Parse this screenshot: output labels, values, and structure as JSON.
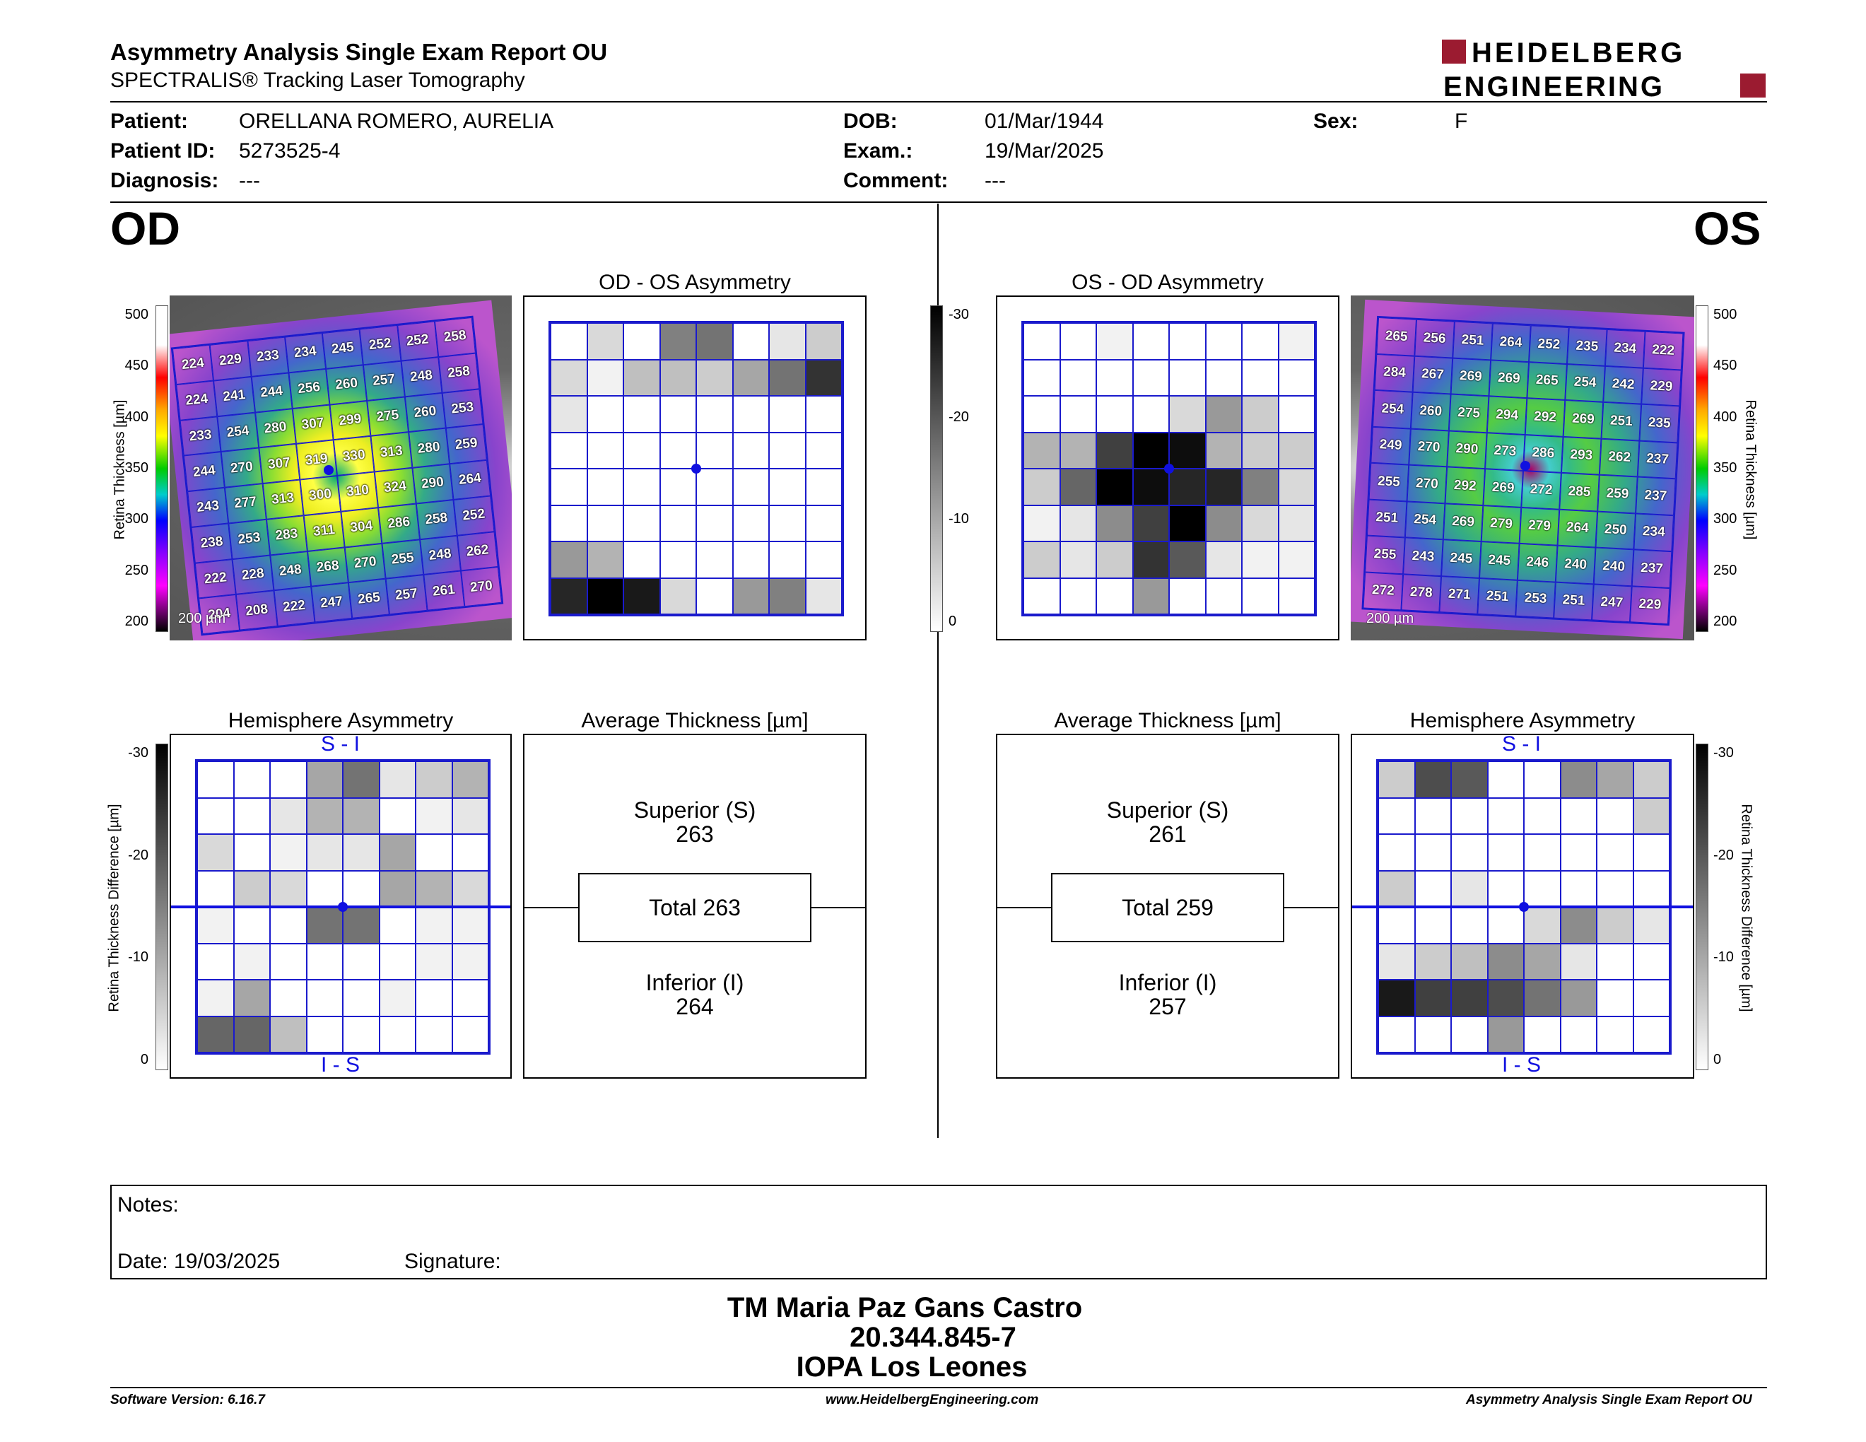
{
  "header": {
    "title": "Asymmetry Analysis Single Exam Report OU",
    "subtitle": "SPECTRALIS® Tracking Laser Tomography",
    "logo_line1": "HEIDELBERG",
    "logo_line2": "ENGINEERING"
  },
  "patient": {
    "patient_label": "Patient:",
    "patient_value": "ORELLANA ROMERO, AURELIA",
    "id_label": "Patient ID:",
    "id_value": "5273525-4",
    "diagnosis_label": "Diagnosis:",
    "diagnosis_value": "---",
    "dob_label": "DOB:",
    "dob_value": "01/Mar/1944",
    "exam_label": "Exam.:",
    "exam_value": "19/Mar/2025",
    "comment_label": "Comment:",
    "comment_value": "---",
    "sex_label": "Sex:",
    "sex_value": "F"
  },
  "eyes": {
    "left_label": "OD",
    "right_label": "OS"
  },
  "titles": {
    "od_os": "OD - OS Asymmetry",
    "os_od": "OS - OD Asymmetry",
    "hemi": "Hemisphere Asymmetry",
    "avg": "Average Thickness [µm]",
    "si": "S - I",
    "is": "I - S"
  },
  "axis": {
    "thickness": "Retina Thickness [µm]",
    "difference": "Retina Thickness Difference [µm]",
    "thick_ticks": [
      "500",
      "450",
      "400",
      "350",
      "300",
      "250",
      "200"
    ],
    "diff_ticks": [
      "-30",
      "-20",
      "-10",
      "0"
    ],
    "scale": "200 µm"
  },
  "od_thickness": [
    [
      "224",
      "229",
      "233",
      "234",
      "245",
      "252",
      "252",
      "258"
    ],
    [
      "224",
      "241",
      "244",
      "256",
      "260",
      "257",
      "248",
      "258"
    ],
    [
      "233",
      "254",
      "280",
      "307",
      "299",
      "275",
      "260",
      "253"
    ],
    [
      "244",
      "270",
      "307",
      "319",
      "330",
      "313",
      "280",
      "259"
    ],
    [
      "243",
      "277",
      "313",
      "300",
      "310",
      "324",
      "290",
      "264"
    ],
    [
      "238",
      "253",
      "283",
      "311",
      "304",
      "286",
      "258",
      "252"
    ],
    [
      "222",
      "228",
      "248",
      "268",
      "270",
      "255",
      "248",
      "262"
    ],
    [
      "204",
      "208",
      "222",
      "247",
      "265",
      "257",
      "261",
      "270"
    ]
  ],
  "os_thickness": [
    [
      "265",
      "256",
      "251",
      "264",
      "252",
      "235",
      "234",
      "222"
    ],
    [
      "284",
      "267",
      "269",
      "269",
      "265",
      "254",
      "242",
      "229"
    ],
    [
      "254",
      "260",
      "275",
      "294",
      "292",
      "269",
      "251",
      "235"
    ],
    [
      "249",
      "270",
      "290",
      "273",
      "286",
      "293",
      "262",
      "237"
    ],
    [
      "255",
      "270",
      "292",
      "269",
      "272",
      "285",
      "259",
      "237"
    ],
    [
      "251",
      "254",
      "269",
      "279",
      "279",
      "264",
      "250",
      "234"
    ],
    [
      "255",
      "243",
      "245",
      "245",
      "246",
      "240",
      "240",
      "237"
    ],
    [
      "272",
      "278",
      "271",
      "251",
      "253",
      "251",
      "247",
      "229"
    ]
  ],
  "od_os_asym": [
    [
      0,
      0.15,
      0,
      0.5,
      0.55,
      0,
      0.1,
      0.2
    ],
    [
      0.15,
      0.05,
      0.25,
      0.25,
      0.2,
      0.35,
      0.55,
      0.8
    ],
    [
      0.1,
      0,
      0,
      0,
      0,
      0,
      0,
      0
    ],
    [
      0,
      0,
      0,
      0,
      0,
      0,
      0,
      0
    ],
    [
      0,
      0,
      0,
      0,
      0,
      0,
      0,
      0
    ],
    [
      0,
      0,
      0,
      0,
      0,
      0,
      0,
      0
    ],
    [
      0.4,
      0.3,
      0,
      0,
      0,
      0,
      0,
      0
    ],
    [
      0.85,
      1.0,
      0.9,
      0.15,
      0,
      0.4,
      0.5,
      0.1
    ]
  ],
  "os_od_asym": [
    [
      0,
      0,
      0.05,
      0,
      0,
      0,
      0,
      0.05
    ],
    [
      0,
      0,
      0,
      0,
      0,
      0,
      0,
      0
    ],
    [
      0,
      0,
      0,
      0,
      0.15,
      0.4,
      0.2,
      0
    ],
    [
      0.3,
      0.3,
      0.75,
      1.0,
      0.95,
      0.3,
      0.2,
      0.2
    ],
    [
      0.2,
      0.6,
      1.0,
      0.95,
      0.85,
      0.85,
      0.5,
      0.15
    ],
    [
      0.05,
      0.1,
      0.45,
      0.75,
      1.0,
      0.45,
      0.15,
      0.1
    ],
    [
      0.2,
      0.1,
      0.2,
      0.8,
      0.65,
      0.1,
      0.05,
      0.05
    ],
    [
      0,
      0,
      0,
      0.4,
      0,
      0,
      0,
      0
    ]
  ],
  "od_hemi": [
    [
      0,
      0,
      0,
      0.35,
      0.55,
      0.1,
      0.2,
      0.3
    ],
    [
      0,
      0,
      0.1,
      0.3,
      0.3,
      0,
      0.05,
      0.1
    ],
    [
      0.15,
      0,
      0.05,
      0.1,
      0.1,
      0.35,
      0,
      0
    ],
    [
      0,
      0.2,
      0.15,
      0,
      0,
      0.35,
      0.3,
      0.15
    ],
    [
      0.05,
      0,
      0,
      0.55,
      0.55,
      0,
      0.05,
      0.05
    ],
    [
      0,
      0.05,
      0,
      0,
      0,
      0,
      0.05,
      0.05
    ],
    [
      0.05,
      0.35,
      0,
      0,
      0,
      0.05,
      0,
      0
    ],
    [
      0.6,
      0.6,
      0.25,
      0,
      0,
      0,
      0,
      0
    ]
  ],
  "os_hemi": [
    [
      0.2,
      0.7,
      0.65,
      0,
      0,
      0.45,
      0.35,
      0.2
    ],
    [
      0,
      0,
      0,
      0,
      0,
      0,
      0,
      0.2
    ],
    [
      0,
      0,
      0,
      0,
      0,
      0,
      0,
      0
    ],
    [
      0.2,
      0,
      0.1,
      0,
      0,
      0,
      0,
      0
    ],
    [
      0,
      0,
      0,
      0,
      0.15,
      0.45,
      0.2,
      0.1
    ],
    [
      0.1,
      0.2,
      0.25,
      0.45,
      0.35,
      0.1,
      0,
      0
    ],
    [
      0.9,
      0.75,
      0.75,
      0.7,
      0.55,
      0.4,
      0,
      0
    ],
    [
      0,
      0,
      0,
      0.4,
      0,
      0,
      0,
      0
    ]
  ],
  "od_avg": {
    "sup_label": "Superior (S)",
    "sup_value": "263",
    "total": "Total 263",
    "inf_label": "Inferior (I)",
    "inf_value": "264"
  },
  "os_avg": {
    "sup_label": "Superior (S)",
    "sup_value": "261",
    "total": "Total 259",
    "inf_label": "Inferior (I)",
    "inf_value": "257"
  },
  "notes": {
    "label": "Notes:",
    "date": "Date: 19/03/2025",
    "signature": "Signature:"
  },
  "footer": {
    "name": "TM Maria Paz Gans Castro",
    "rut": "20.344.845-7",
    "org": "IOPA Los Leones",
    "version": "Software Version: 6.16.7",
    "url": "www.HeidelbergEngineering.com",
    "report": "Asymmetry Analysis Single Exam Report OU"
  }
}
